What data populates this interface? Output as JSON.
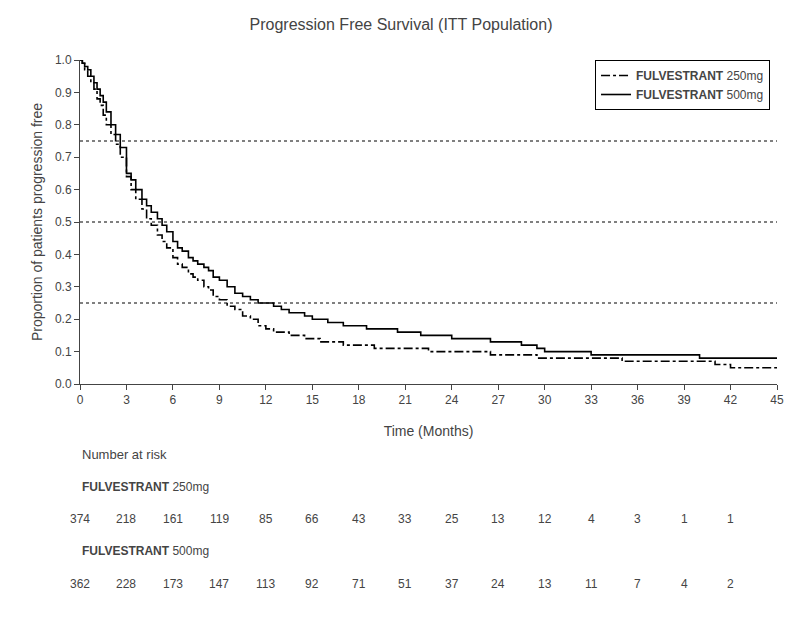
{
  "chart_data": {
    "type": "step",
    "title": "Progression Free Survival (ITT Population)",
    "xlabel": "Time (Months)",
    "ylabel": "Proportion of patients progression free",
    "xlim": [
      0,
      45
    ],
    "ylim": [
      0.0,
      1.0
    ],
    "xticks": [
      0,
      3,
      6,
      9,
      12,
      15,
      18,
      21,
      24,
      27,
      30,
      33,
      36,
      39,
      42,
      45
    ],
    "yticks": [
      {
        "value": 0.0,
        "label": "0.0"
      },
      0.1,
      0.2,
      0.3,
      0.4,
      0.5,
      0.6,
      0.7,
      0.8,
      0.9,
      {
        "value": 1.0,
        "label": "1.0"
      }
    ],
    "grid": false,
    "legend": "upper right",
    "hlines": [
      0.75,
      0.5,
      0.25
    ],
    "series": [
      {
        "name": "FULVESTRANT 250mg",
        "color": "black",
        "line_style": "dashdot",
        "x": [
          0.0,
          0.15,
          0.3,
          0.5,
          0.7,
          0.9,
          1.1,
          1.3,
          1.5,
          1.7,
          2.0,
          2.3,
          2.6,
          3.0,
          3.3,
          3.6,
          4.0,
          4.3,
          4.6,
          5.0,
          5.3,
          5.6,
          6.0,
          6.3,
          6.6,
          7.0,
          7.3,
          7.6,
          8.0,
          8.3,
          8.6,
          9.0,
          9.5,
          10.0,
          10.5,
          11.0,
          11.5,
          12.0,
          12.5,
          13.0,
          13.5,
          14.0,
          14.5,
          15.0,
          15.5,
          16.0,
          16.5,
          17.0,
          17.5,
          18.0,
          18.5,
          19.0,
          19.5,
          20.0,
          20.5,
          21.0,
          21.5,
          22.0,
          22.5,
          23.0,
          23.5,
          24.0,
          24.5,
          25.0,
          25.5,
          26.0,
          26.5,
          27.0,
          27.5,
          28.0,
          28.5,
          29.0,
          29.5,
          30.0,
          31.0,
          32.0,
          33.0,
          34.0,
          35.0,
          36.0,
          37.0,
          38.0,
          39.0,
          40.0,
          41.0,
          42.0,
          43.0,
          44.0,
          45.0
        ],
        "values": [
          1.0,
          0.99,
          0.97,
          0.95,
          0.93,
          0.91,
          0.88,
          0.86,
          0.83,
          0.8,
          0.77,
          0.74,
          0.7,
          0.64,
          0.6,
          0.57,
          0.54,
          0.51,
          0.49,
          0.46,
          0.44,
          0.42,
          0.39,
          0.37,
          0.36,
          0.34,
          0.33,
          0.32,
          0.3,
          0.29,
          0.27,
          0.26,
          0.24,
          0.23,
          0.21,
          0.2,
          0.18,
          0.17,
          0.16,
          0.16,
          0.15,
          0.15,
          0.14,
          0.14,
          0.13,
          0.13,
          0.13,
          0.12,
          0.12,
          0.12,
          0.12,
          0.11,
          0.11,
          0.11,
          0.11,
          0.11,
          0.11,
          0.11,
          0.1,
          0.1,
          0.1,
          0.1,
          0.1,
          0.1,
          0.1,
          0.1,
          0.09,
          0.09,
          0.09,
          0.09,
          0.09,
          0.09,
          0.08,
          0.08,
          0.08,
          0.08,
          0.08,
          0.08,
          0.07,
          0.07,
          0.07,
          0.07,
          0.07,
          0.07,
          0.06,
          0.05,
          0.05,
          0.05,
          0.05
        ]
      },
      {
        "name": "FULVESTRANT 500mg",
        "color": "black",
        "line_style": "solid",
        "x": [
          0.0,
          0.15,
          0.3,
          0.5,
          0.7,
          0.9,
          1.1,
          1.3,
          1.5,
          1.7,
          2.0,
          2.3,
          2.6,
          3.0,
          3.3,
          3.6,
          4.0,
          4.3,
          4.6,
          5.0,
          5.3,
          5.6,
          6.0,
          6.3,
          6.6,
          7.0,
          7.3,
          7.6,
          8.0,
          8.3,
          8.6,
          9.0,
          9.5,
          10.0,
          10.5,
          11.0,
          11.5,
          12.0,
          12.5,
          13.0,
          13.5,
          14.0,
          14.5,
          15.0,
          15.5,
          16.0,
          16.5,
          17.0,
          17.5,
          18.0,
          18.5,
          19.0,
          19.5,
          20.0,
          20.5,
          21.0,
          21.5,
          22.0,
          22.5,
          23.0,
          23.5,
          24.0,
          24.5,
          25.0,
          25.5,
          26.0,
          26.5,
          27.0,
          27.5,
          28.0,
          28.5,
          29.0,
          29.5,
          30.0,
          31.0,
          32.0,
          33.0,
          34.0,
          35.0,
          36.0,
          37.0,
          38.0,
          39.0,
          40.0,
          41.0,
          42.0,
          43.0,
          44.0,
          45.0
        ],
        "values": [
          1.0,
          0.99,
          0.98,
          0.97,
          0.95,
          0.93,
          0.91,
          0.89,
          0.87,
          0.84,
          0.8,
          0.77,
          0.73,
          0.65,
          0.63,
          0.6,
          0.57,
          0.55,
          0.53,
          0.51,
          0.49,
          0.47,
          0.44,
          0.42,
          0.41,
          0.39,
          0.38,
          0.37,
          0.36,
          0.35,
          0.33,
          0.32,
          0.3,
          0.28,
          0.27,
          0.26,
          0.25,
          0.25,
          0.24,
          0.23,
          0.22,
          0.22,
          0.21,
          0.2,
          0.2,
          0.19,
          0.19,
          0.18,
          0.18,
          0.18,
          0.17,
          0.17,
          0.17,
          0.17,
          0.16,
          0.16,
          0.16,
          0.15,
          0.15,
          0.15,
          0.15,
          0.14,
          0.14,
          0.14,
          0.14,
          0.14,
          0.13,
          0.13,
          0.13,
          0.13,
          0.12,
          0.12,
          0.11,
          0.1,
          0.1,
          0.1,
          0.09,
          0.09,
          0.09,
          0.09,
          0.09,
          0.09,
          0.09,
          0.08,
          0.08,
          0.08,
          0.08,
          0.08,
          0.08
        ]
      }
    ],
    "number_at_risk": {
      "label": "Number at risk",
      "x": [
        0,
        3,
        6,
        9,
        12,
        15,
        18,
        21,
        24,
        27,
        30,
        33,
        36,
        39,
        42
      ],
      "rows": [
        {
          "name": "FULVESTRANT 250mg",
          "values": [
            374,
            218,
            161,
            119,
            85,
            66,
            43,
            33,
            25,
            13,
            12,
            4,
            3,
            1,
            1
          ]
        },
        {
          "name": "FULVESTRANT 500mg",
          "values": [
            362,
            228,
            173,
            147,
            113,
            92,
            71,
            51,
            37,
            24,
            13,
            11,
            7,
            4,
            2
          ]
        }
      ]
    }
  }
}
